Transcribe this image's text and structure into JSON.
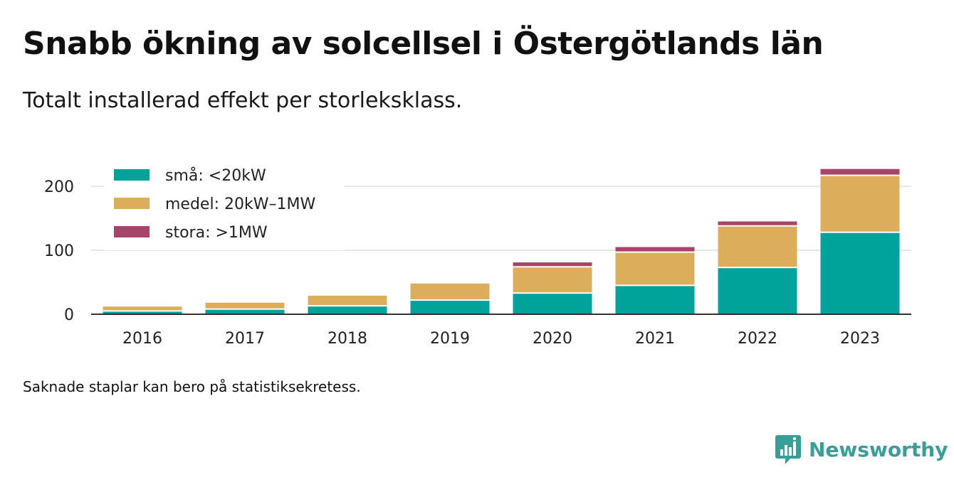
{
  "title": "Snabb ökning av solcellsel i Östergötlands län",
  "subtitle": "Totalt installerad effekt per storleksklass.",
  "note": "Saknade staplar kan bero på statistiksekretess.",
  "brand": "Newsworthy",
  "colors": {
    "small": "#00a399",
    "medium": "#dcae5b",
    "large": "#a8436a",
    "grid": "#dddddd",
    "axis": "#333333",
    "brand": "#3a9e98"
  },
  "chart_data": {
    "type": "bar",
    "stacked": true,
    "categories": [
      "2016",
      "2017",
      "2018",
      "2019",
      "2020",
      "2021",
      "2022",
      "2023"
    ],
    "series": [
      {
        "name": "små: <20kW",
        "color": "#00a399",
        "values": [
          4,
          7,
          12,
          21,
          32,
          44,
          72,
          127
        ]
      },
      {
        "name": "medel: 20kW–1MW",
        "color": "#dcae5b",
        "values": [
          8,
          11,
          17,
          27,
          41,
          52,
          65,
          89
        ]
      },
      {
        "name": "stora: >1MW",
        "color": "#a8436a",
        "values": [
          0,
          0,
          0,
          0,
          8,
          9,
          8,
          11
        ]
      }
    ],
    "ylim": [
      0,
      230
    ],
    "yticks": [
      0,
      100,
      200
    ],
    "legend": "top-left",
    "grid": true,
    "xlabel": "",
    "ylabel": ""
  }
}
